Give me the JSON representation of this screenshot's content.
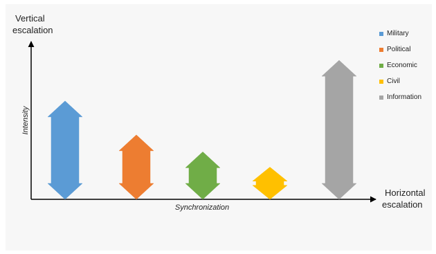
{
  "y_axis_title": [
    "Vertical",
    "escalation"
  ],
  "x_axis_title": [
    "Horizontal",
    "escalation"
  ],
  "y_axis_label": "Intensity",
  "x_axis_label": "Synchronization",
  "dimensions": [
    {
      "label": "Military",
      "color": "#5b9bd5",
      "intensity": 0.58
    },
    {
      "label": "Political",
      "color": "#ed7d31",
      "intensity": 0.38
    },
    {
      "label": "Economic",
      "color": "#70ad47",
      "intensity": 0.28
    },
    {
      "label": "Civil",
      "color": "#ffc000",
      "intensity": 0.19
    },
    {
      "label": "Information",
      "color": "#a5a5a5",
      "intensity": 0.82
    }
  ]
}
